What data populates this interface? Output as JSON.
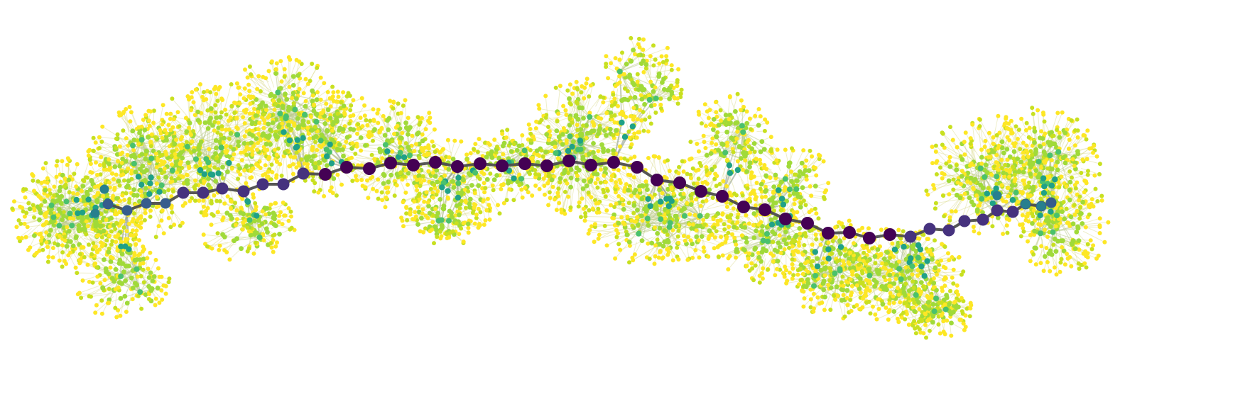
{
  "figure": {
    "kind": "tree-embedding-graph",
    "background": "#ffffff",
    "edge_color": "#606060",
    "backbone_edge_color": "#4d4d4d",
    "colormap": "viridis",
    "depth_colors": [
      "#440154",
      "#46327e",
      "#365c8d",
      "#277f8e",
      "#1fa187",
      "#4ac16d",
      "#a0da39",
      "#c8e020",
      "#fde725"
    ],
    "node_count_approx": 3000,
    "backbone_node_count": 52
  }
}
